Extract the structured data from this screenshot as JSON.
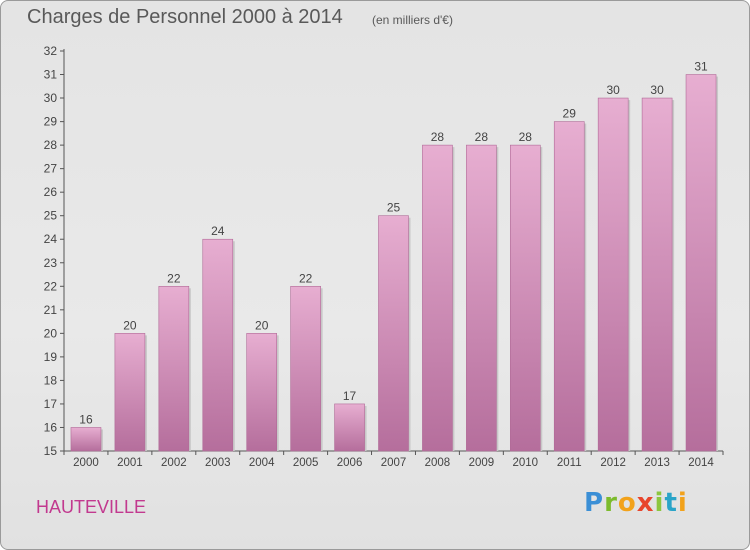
{
  "title": "Charges de Personnel 2000 à 2014",
  "subtitle": "(en milliers d'€)",
  "commune": "HAUTEVILLE",
  "logo": {
    "text": "Proxiti"
  },
  "colors": {
    "bar_top": "#e7aed1",
    "bar_bottom": "#b56e9c",
    "title": "#595959",
    "commune": "#c2398f"
  },
  "chart_data": {
    "type": "bar",
    "title": "Charges de Personnel 2000 à 2014",
    "subtitle": "(en milliers d'€)",
    "categories": [
      "2000",
      "2001",
      "2002",
      "2003",
      "2004",
      "2005",
      "2006",
      "2007",
      "2008",
      "2009",
      "2010",
      "2011",
      "2012",
      "2013",
      "2014"
    ],
    "values": [
      16,
      20,
      22,
      24,
      20,
      22,
      17,
      25,
      28,
      28,
      28,
      29,
      30,
      30,
      31
    ],
    "ylim": [
      15,
      32
    ],
    "yticks": [
      15,
      16,
      17,
      18,
      19,
      20,
      21,
      22,
      23,
      24,
      25,
      26,
      27,
      28,
      29,
      30,
      31,
      32
    ],
    "grid": false,
    "data_labels": true
  }
}
